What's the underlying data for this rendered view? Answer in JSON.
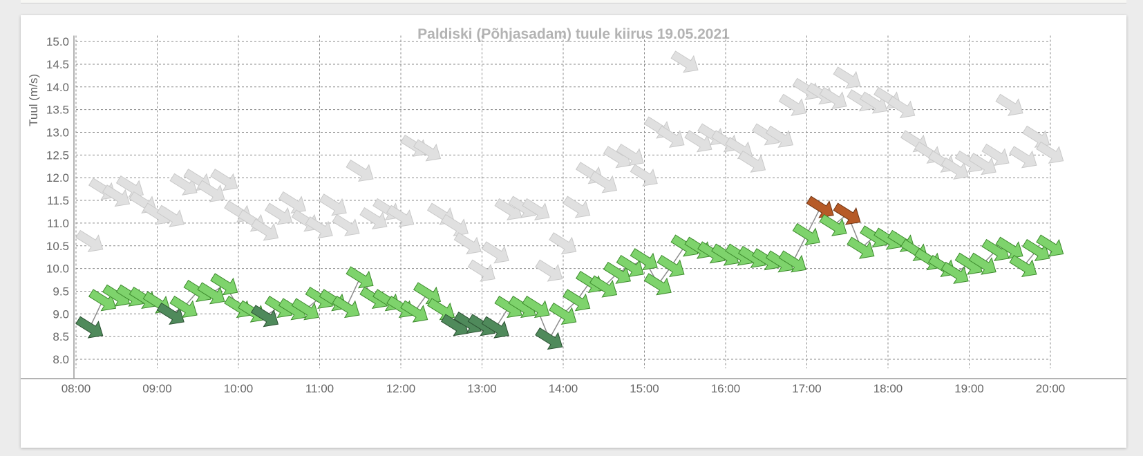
{
  "chart_data": {
    "type": "scatter",
    "title": "Paldiski (Põhjasadam) tuule kiirus 19.05.2021",
    "ylabel": "Tuul (m/s)",
    "xlabel": "",
    "ylim": [
      7.8,
      15.1
    ],
    "xlim": [
      8.0,
      20.1
    ],
    "y_ticks": [
      "8.0",
      "8.5",
      "9.0",
      "9.5",
      "10.0",
      "10.5",
      "11.0",
      "11.5",
      "12.0",
      "12.5",
      "13.0",
      "13.5",
      "14.0",
      "14.5",
      "15.0"
    ],
    "y_tick_values": [
      8.0,
      8.5,
      9.0,
      9.5,
      10.0,
      10.5,
      11.0,
      11.5,
      12.0,
      12.5,
      13.0,
      13.5,
      14.0,
      14.5,
      15.0
    ],
    "x_ticks": [
      "08:00",
      "09:00",
      "10:00",
      "11:00",
      "12:00",
      "13:00",
      "14:00",
      "15:00",
      "16:00",
      "17:00",
      "18:00",
      "19:00",
      "20:00"
    ],
    "x_tick_values": [
      8,
      9,
      10,
      11,
      12,
      13,
      14,
      15,
      16,
      17,
      18,
      19,
      20
    ],
    "grid": true,
    "series": [
      {
        "key": "gust",
        "color": "#e0e0e0",
        "x": [
          8.17,
          8.33,
          8.5,
          8.67,
          8.83,
          9.0,
          9.17,
          9.33,
          9.5,
          9.67,
          9.83,
          10.0,
          10.17,
          10.33,
          10.5,
          10.67,
          10.83,
          11.0,
          11.17,
          11.33,
          11.5,
          11.67,
          11.83,
          12.0,
          12.17,
          12.33,
          12.5,
          12.67,
          12.83,
          13.0,
          13.17,
          13.33,
          13.5,
          13.67,
          13.83,
          14.0,
          14.17,
          14.33,
          14.5,
          14.67,
          14.83,
          15.0,
          15.17,
          15.33,
          15.5,
          15.67,
          15.83,
          16.0,
          16.17,
          16.33,
          16.5,
          16.67,
          16.83,
          17.0,
          17.17,
          17.33,
          17.5,
          17.67,
          17.83,
          18.0,
          18.17,
          18.33,
          18.5,
          18.67,
          18.83,
          19.0,
          19.17,
          19.33,
          19.5,
          19.67,
          19.83,
          20.0
        ],
        "y": [
          10.6,
          11.75,
          11.6,
          11.8,
          11.45,
          11.2,
          11.15,
          11.85,
          11.95,
          11.7,
          11.95,
          11.25,
          11.05,
          10.85,
          11.2,
          11.45,
          11.05,
          10.9,
          11.4,
          10.95,
          12.15,
          11.1,
          11.3,
          11.15,
          12.7,
          12.6,
          11.2,
          10.95,
          10.55,
          9.95,
          10.35,
          11.3,
          11.35,
          11.3,
          9.95,
          10.55,
          11.35,
          12.1,
          11.9,
          12.45,
          12.5,
          12.05,
          13.1,
          12.9,
          14.55,
          12.8,
          12.95,
          12.8,
          12.65,
          12.35,
          12.95,
          12.9,
          13.6,
          13.95,
          13.85,
          13.75,
          14.2,
          13.7,
          13.65,
          13.75,
          13.55,
          12.8,
          12.55,
          12.35,
          12.2,
          12.35,
          12.3,
          12.5,
          13.6,
          12.45,
          12.9,
          12.55
        ]
      },
      {
        "key": "wind",
        "colors_by_category": {
          "light": "#7ed36c",
          "dark": "#4f8a5b",
          "orange": "#b65a27"
        },
        "x": [
          8.17,
          8.33,
          8.5,
          8.67,
          8.83,
          9.0,
          9.17,
          9.33,
          9.5,
          9.67,
          9.83,
          10.0,
          10.17,
          10.33,
          10.5,
          10.67,
          10.83,
          11.0,
          11.17,
          11.33,
          11.5,
          11.67,
          11.83,
          12.0,
          12.17,
          12.33,
          12.5,
          12.67,
          12.83,
          13.0,
          13.17,
          13.33,
          13.5,
          13.67,
          13.83,
          14.0,
          14.17,
          14.33,
          14.5,
          14.67,
          14.83,
          15.0,
          15.17,
          15.33,
          15.5,
          15.67,
          15.83,
          16.0,
          16.17,
          16.33,
          16.5,
          16.67,
          16.83,
          17.0,
          17.17,
          17.33,
          17.5,
          17.67,
          17.83,
          18.0,
          18.17,
          18.33,
          18.5,
          18.67,
          18.83,
          19.0,
          19.17,
          19.33,
          19.5,
          19.67,
          19.83,
          20.0
        ],
        "y": [
          8.7,
          9.3,
          9.4,
          9.4,
          9.35,
          9.25,
          9.0,
          9.15,
          9.5,
          9.45,
          9.65,
          9.15,
          9.05,
          8.95,
          9.15,
          9.1,
          9.1,
          9.35,
          9.3,
          9.15,
          9.8,
          9.35,
          9.3,
          9.15,
          9.05,
          9.45,
          9.1,
          8.75,
          8.8,
          8.75,
          8.7,
          9.15,
          9.15,
          9.15,
          8.45,
          9.0,
          9.3,
          9.7,
          9.6,
          9.9,
          10.05,
          10.2,
          9.65,
          10.05,
          10.5,
          10.45,
          10.35,
          10.3,
          10.3,
          10.25,
          10.2,
          10.15,
          10.15,
          10.75,
          11.35,
          10.95,
          11.2,
          10.45,
          10.7,
          10.65,
          10.6,
          10.4,
          10.2,
          10.05,
          9.9,
          10.1,
          10.1,
          10.4,
          10.45,
          10.05,
          10.4,
          10.5
        ],
        "category": [
          "dark",
          "light",
          "light",
          "light",
          "light",
          "light",
          "dark",
          "light",
          "light",
          "light",
          "light",
          "light",
          "light",
          "dark",
          "light",
          "light",
          "light",
          "light",
          "light",
          "light",
          "light",
          "light",
          "light",
          "light",
          "light",
          "light",
          "light",
          "dark",
          "dark",
          "dark",
          "dark",
          "light",
          "light",
          "light",
          "dark",
          "light",
          "light",
          "light",
          "light",
          "light",
          "light",
          "light",
          "light",
          "light",
          "light",
          "light",
          "light",
          "light",
          "light",
          "light",
          "light",
          "light",
          "light",
          "light",
          "orange",
          "light",
          "orange",
          "light",
          "light",
          "light",
          "light",
          "light",
          "light",
          "light",
          "light",
          "light",
          "light",
          "light",
          "light",
          "light",
          "light",
          "light"
        ]
      }
    ]
  }
}
